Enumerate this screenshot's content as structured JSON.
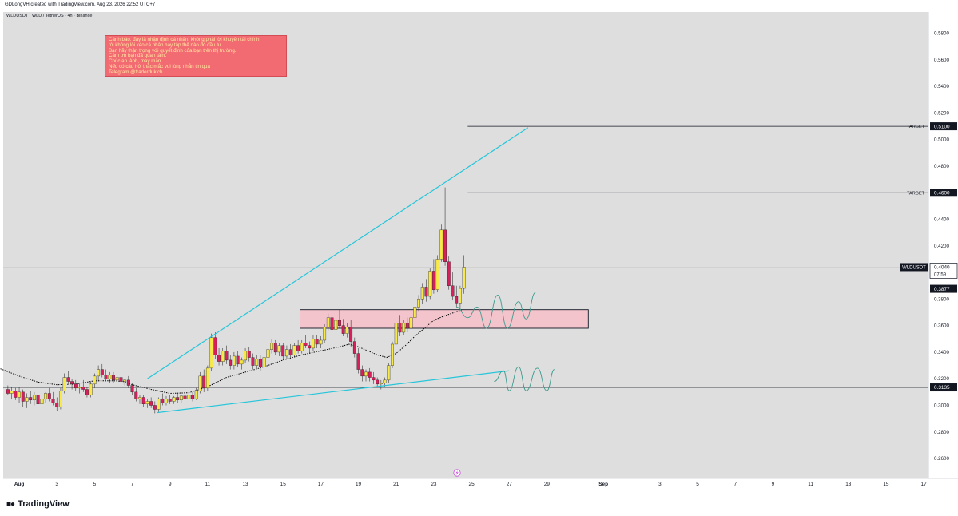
{
  "header": {
    "attribution": "GDLongVH created with TradingView.com, Aug 23, 2026 22:52 UTC+7",
    "symbol_title": "WLDUSDT · WLD / TetherUS · 4h · Binance"
  },
  "note": {
    "lines": [
      "Cảnh báo: đây là nhận định cá nhân, không phải lời khuyên tài chính,",
      "tôi không lôi kéo cá nhân hay tập thể nào đó đầu tư.",
      "Bạn hãy thận trọng với quyết định của bạn trên thị trường.",
      "Cảm ơn bạn đã quan tâm.",
      "Chúc an lành, may mắn.",
      "Nếu có câu hỏi thắc mắc vui lòng nhắn tin qua",
      "Telegram @traderdukich"
    ]
  },
  "footer": {
    "brand": "TradingView"
  },
  "colors": {
    "up": "#f7e94a",
    "down": "#d81e5b",
    "trendline": "#26c6da",
    "ma": "#000000",
    "zone": "#f3c4cc",
    "note_bg": "#f26b72"
  },
  "chart_data": {
    "type": "candlestick",
    "symbol": "WLDUSDT",
    "timeframe": "4h",
    "x_ticks": [
      "Aug",
      "3",
      "5",
      "7",
      "9",
      "11",
      "13",
      "15",
      "17",
      "19",
      "21",
      "23",
      "25",
      "27",
      "29",
      "Sep",
      "3",
      "5",
      "7",
      "9",
      "11",
      "13",
      "15",
      "17"
    ],
    "y_ticks": [
      "0.2600",
      "0.2800",
      "0.3000",
      "0.3200",
      "0.3400",
      "0.3600",
      "0.3800",
      "0.4000",
      "0.4200",
      "0.4400",
      "0.4600",
      "0.4800",
      "0.5000",
      "0.5200",
      "0.5400",
      "0.5600",
      "0.5800"
    ],
    "ylim": [
      0.245,
      0.596
    ],
    "x_range_days": [
      -0.85,
      48.25
    ],
    "price_labels": [
      {
        "price": 0.51,
        "text": "0.5100",
        "label": "TARGET"
      },
      {
        "price": 0.46,
        "text": "0.4600",
        "label": "TARGET"
      },
      {
        "price": 0.404,
        "text": "0.4040",
        "symbol": "WLDUSDT",
        "countdown": "07:59"
      },
      {
        "price": 0.3877,
        "text": "0.3877"
      },
      {
        "price": 0.3135,
        "text": "0.3135"
      }
    ],
    "levels": [
      {
        "price": 0.51,
        "from_day": 23.8,
        "to_day": 48.25,
        "label": "TARGET"
      },
      {
        "price": 0.46,
        "from_day": 23.8,
        "to_day": 48.25,
        "label": "TARGET"
      },
      {
        "price": 0.3135,
        "from_day": -0.85,
        "to_day": 48.25
      }
    ],
    "zone": {
      "from_day": 14.9,
      "to_day": 30.2,
      "low": 0.358,
      "high": 0.372
    },
    "trendlines": [
      {
        "from": [
          6.8,
          0.32
        ],
        "to": [
          27.0,
          0.509
        ]
      },
      {
        "from": [
          7.3,
          0.2945
        ],
        "to": [
          26.0,
          0.326
        ]
      }
    ],
    "projections": [
      [
        [
          23.2,
          0.374
        ],
        [
          23.8,
          0.366
        ],
        [
          24.3,
          0.374
        ],
        [
          24.8,
          0.358
        ],
        [
          25.4,
          0.383
        ],
        [
          25.9,
          0.358
        ],
        [
          26.5,
          0.378
        ],
        [
          26.9,
          0.365
        ],
        [
          27.4,
          0.385
        ]
      ],
      [
        [
          25.2,
          0.318
        ],
        [
          25.7,
          0.326
        ],
        [
          26.0,
          0.311
        ],
        [
          26.5,
          0.329
        ],
        [
          26.9,
          0.311
        ],
        [
          27.5,
          0.328
        ],
        [
          28.0,
          0.311
        ],
        [
          28.4,
          0.327
        ]
      ]
    ],
    "ma_points": [
      [
        -1.0,
        0.3275
      ],
      [
        0.0,
        0.322
      ],
      [
        1.0,
        0.3175
      ],
      [
        2.0,
        0.3155
      ],
      [
        3.0,
        0.316
      ],
      [
        4.0,
        0.3185
      ],
      [
        5.0,
        0.3185
      ],
      [
        5.5,
        0.318
      ],
      [
        6.0,
        0.3155
      ],
      [
        7.0,
        0.312
      ],
      [
        8.0,
        0.309
      ],
      [
        9.0,
        0.3095
      ],
      [
        10.0,
        0.314
      ],
      [
        11.0,
        0.321
      ],
      [
        12.0,
        0.325
      ],
      [
        13.0,
        0.329
      ],
      [
        14.0,
        0.334
      ],
      [
        15.0,
        0.338
      ],
      [
        16.0,
        0.341
      ],
      [
        17.0,
        0.344
      ],
      [
        17.5,
        0.346
      ],
      [
        18.0,
        0.344
      ],
      [
        18.5,
        0.341
      ],
      [
        19.0,
        0.338
      ],
      [
        19.5,
        0.336
      ],
      [
        20.0,
        0.339
      ],
      [
        20.5,
        0.345
      ],
      [
        21.0,
        0.352
      ],
      [
        21.5,
        0.358
      ],
      [
        22.0,
        0.364
      ],
      [
        22.5,
        0.367
      ],
      [
        23.0,
        0.3695
      ],
      [
        23.5,
        0.372
      ]
    ],
    "candles": [
      {
        "day": -0.6,
        "o": 0.312,
        "h": 0.315,
        "l": 0.308,
        "c": 0.309
      },
      {
        "day": -0.4,
        "o": 0.309,
        "h": 0.314,
        "l": 0.305,
        "c": 0.311
      },
      {
        "day": -0.2,
        "o": 0.311,
        "h": 0.313,
        "l": 0.304,
        "c": 0.306
      },
      {
        "day": 0.0,
        "o": 0.306,
        "h": 0.314,
        "l": 0.302,
        "c": 0.31
      },
      {
        "day": 0.2,
        "o": 0.31,
        "h": 0.312,
        "l": 0.299,
        "c": 0.303
      },
      {
        "day": 0.4,
        "o": 0.303,
        "h": 0.309,
        "l": 0.298,
        "c": 0.306
      },
      {
        "day": 0.6,
        "o": 0.306,
        "h": 0.311,
        "l": 0.301,
        "c": 0.304
      },
      {
        "day": 0.8,
        "o": 0.304,
        "h": 0.31,
        "l": 0.3,
        "c": 0.308
      },
      {
        "day": 1.0,
        "o": 0.308,
        "h": 0.311,
        "l": 0.299,
        "c": 0.301
      },
      {
        "day": 1.2,
        "o": 0.301,
        "h": 0.307,
        "l": 0.298,
        "c": 0.305
      },
      {
        "day": 1.4,
        "o": 0.305,
        "h": 0.31,
        "l": 0.302,
        "c": 0.309
      },
      {
        "day": 1.6,
        "o": 0.309,
        "h": 0.313,
        "l": 0.303,
        "c": 0.305
      },
      {
        "day": 1.8,
        "o": 0.305,
        "h": 0.31,
        "l": 0.3,
        "c": 0.302
      },
      {
        "day": 2.0,
        "o": 0.302,
        "h": 0.306,
        "l": 0.296,
        "c": 0.299
      },
      {
        "day": 2.2,
        "o": 0.299,
        "h": 0.313,
        "l": 0.297,
        "c": 0.311
      },
      {
        "day": 2.4,
        "o": 0.311,
        "h": 0.324,
        "l": 0.309,
        "c": 0.321
      },
      {
        "day": 2.6,
        "o": 0.321,
        "h": 0.326,
        "l": 0.316,
        "c": 0.318
      },
      {
        "day": 2.8,
        "o": 0.318,
        "h": 0.32,
        "l": 0.312,
        "c": 0.316
      },
      {
        "day": 3.0,
        "o": 0.316,
        "h": 0.319,
        "l": 0.311,
        "c": 0.313
      },
      {
        "day": 3.2,
        "o": 0.313,
        "h": 0.316,
        "l": 0.309,
        "c": 0.314
      },
      {
        "day": 3.4,
        "o": 0.314,
        "h": 0.319,
        "l": 0.31,
        "c": 0.312
      },
      {
        "day": 3.6,
        "o": 0.312,
        "h": 0.314,
        "l": 0.306,
        "c": 0.308
      },
      {
        "day": 3.8,
        "o": 0.308,
        "h": 0.318,
        "l": 0.306,
        "c": 0.316
      },
      {
        "day": 4.0,
        "o": 0.316,
        "h": 0.324,
        "l": 0.313,
        "c": 0.322
      },
      {
        "day": 4.2,
        "o": 0.322,
        "h": 0.33,
        "l": 0.318,
        "c": 0.327
      },
      {
        "day": 4.4,
        "o": 0.327,
        "h": 0.331,
        "l": 0.321,
        "c": 0.323
      },
      {
        "day": 4.6,
        "o": 0.323,
        "h": 0.327,
        "l": 0.318,
        "c": 0.32
      },
      {
        "day": 4.8,
        "o": 0.32,
        "h": 0.325,
        "l": 0.317,
        "c": 0.323
      },
      {
        "day": 5.0,
        "o": 0.323,
        "h": 0.325,
        "l": 0.317,
        "c": 0.319
      },
      {
        "day": 5.2,
        "o": 0.319,
        "h": 0.322,
        "l": 0.316,
        "c": 0.321
      },
      {
        "day": 5.4,
        "o": 0.321,
        "h": 0.323,
        "l": 0.317,
        "c": 0.318
      },
      {
        "day": 5.6,
        "o": 0.318,
        "h": 0.32,
        "l": 0.315,
        "c": 0.319
      },
      {
        "day": 5.8,
        "o": 0.319,
        "h": 0.322,
        "l": 0.313,
        "c": 0.315
      },
      {
        "day": 6.0,
        "o": 0.315,
        "h": 0.317,
        "l": 0.308,
        "c": 0.31
      },
      {
        "day": 6.2,
        "o": 0.31,
        "h": 0.313,
        "l": 0.303,
        "c": 0.305
      },
      {
        "day": 6.4,
        "o": 0.305,
        "h": 0.308,
        "l": 0.301,
        "c": 0.306
      },
      {
        "day": 6.6,
        "o": 0.306,
        "h": 0.308,
        "l": 0.299,
        "c": 0.301
      },
      {
        "day": 6.8,
        "o": 0.301,
        "h": 0.305,
        "l": 0.298,
        "c": 0.303
      },
      {
        "day": 7.0,
        "o": 0.303,
        "h": 0.306,
        "l": 0.298,
        "c": 0.3
      },
      {
        "day": 7.2,
        "o": 0.3,
        "h": 0.303,
        "l": 0.294,
        "c": 0.297
      },
      {
        "day": 7.4,
        "o": 0.297,
        "h": 0.306,
        "l": 0.295,
        "c": 0.305
      },
      {
        "day": 7.6,
        "o": 0.305,
        "h": 0.309,
        "l": 0.3,
        "c": 0.302
      },
      {
        "day": 7.8,
        "o": 0.302,
        "h": 0.307,
        "l": 0.3,
        "c": 0.305
      },
      {
        "day": 8.0,
        "o": 0.305,
        "h": 0.308,
        "l": 0.301,
        "c": 0.303
      },
      {
        "day": 8.2,
        "o": 0.303,
        "h": 0.307,
        "l": 0.301,
        "c": 0.306
      },
      {
        "day": 8.4,
        "o": 0.306,
        "h": 0.309,
        "l": 0.302,
        "c": 0.304
      },
      {
        "day": 8.6,
        "o": 0.304,
        "h": 0.308,
        "l": 0.302,
        "c": 0.307
      },
      {
        "day": 8.8,
        "o": 0.307,
        "h": 0.309,
        "l": 0.303,
        "c": 0.305
      },
      {
        "day": 9.0,
        "o": 0.305,
        "h": 0.31,
        "l": 0.303,
        "c": 0.308
      },
      {
        "day": 9.2,
        "o": 0.308,
        "h": 0.31,
        "l": 0.303,
        "c": 0.305
      },
      {
        "day": 9.4,
        "o": 0.305,
        "h": 0.313,
        "l": 0.304,
        "c": 0.311
      },
      {
        "day": 9.6,
        "o": 0.311,
        "h": 0.325,
        "l": 0.309,
        "c": 0.322
      },
      {
        "day": 9.8,
        "o": 0.322,
        "h": 0.327,
        "l": 0.31,
        "c": 0.313
      },
      {
        "day": 10.0,
        "o": 0.313,
        "h": 0.33,
        "l": 0.311,
        "c": 0.328
      },
      {
        "day": 10.2,
        "o": 0.328,
        "h": 0.354,
        "l": 0.326,
        "c": 0.351
      },
      {
        "day": 10.4,
        "o": 0.351,
        "h": 0.355,
        "l": 0.335,
        "c": 0.338
      },
      {
        "day": 10.6,
        "o": 0.338,
        "h": 0.343,
        "l": 0.33,
        "c": 0.333
      },
      {
        "day": 10.8,
        "o": 0.333,
        "h": 0.343,
        "l": 0.33,
        "c": 0.341
      },
      {
        "day": 11.0,
        "o": 0.341,
        "h": 0.345,
        "l": 0.331,
        "c": 0.334
      },
      {
        "day": 11.2,
        "o": 0.334,
        "h": 0.338,
        "l": 0.327,
        "c": 0.33
      },
      {
        "day": 11.4,
        "o": 0.33,
        "h": 0.34,
        "l": 0.327,
        "c": 0.337
      },
      {
        "day": 11.6,
        "o": 0.337,
        "h": 0.341,
        "l": 0.329,
        "c": 0.331
      },
      {
        "day": 11.8,
        "o": 0.331,
        "h": 0.336,
        "l": 0.327,
        "c": 0.334
      },
      {
        "day": 12.0,
        "o": 0.334,
        "h": 0.343,
        "l": 0.332,
        "c": 0.341
      },
      {
        "day": 12.2,
        "o": 0.341,
        "h": 0.344,
        "l": 0.333,
        "c": 0.336
      },
      {
        "day": 12.4,
        "o": 0.336,
        "h": 0.339,
        "l": 0.327,
        "c": 0.33
      },
      {
        "day": 12.6,
        "o": 0.33,
        "h": 0.338,
        "l": 0.327,
        "c": 0.335
      },
      {
        "day": 12.8,
        "o": 0.335,
        "h": 0.338,
        "l": 0.326,
        "c": 0.329
      },
      {
        "day": 13.0,
        "o": 0.329,
        "h": 0.338,
        "l": 0.327,
        "c": 0.336
      },
      {
        "day": 13.2,
        "o": 0.336,
        "h": 0.344,
        "l": 0.333,
        "c": 0.342
      },
      {
        "day": 13.4,
        "o": 0.342,
        "h": 0.35,
        "l": 0.339,
        "c": 0.347
      },
      {
        "day": 13.6,
        "o": 0.347,
        "h": 0.349,
        "l": 0.338,
        "c": 0.34
      },
      {
        "day": 13.8,
        "o": 0.34,
        "h": 0.347,
        "l": 0.337,
        "c": 0.345
      },
      {
        "day": 14.0,
        "o": 0.345,
        "h": 0.347,
        "l": 0.334,
        "c": 0.337
      },
      {
        "day": 14.2,
        "o": 0.337,
        "h": 0.345,
        "l": 0.335,
        "c": 0.342
      },
      {
        "day": 14.4,
        "o": 0.342,
        "h": 0.346,
        "l": 0.336,
        "c": 0.338
      },
      {
        "day": 14.6,
        "o": 0.338,
        "h": 0.347,
        "l": 0.336,
        "c": 0.345
      },
      {
        "day": 14.8,
        "o": 0.345,
        "h": 0.349,
        "l": 0.339,
        "c": 0.341
      },
      {
        "day": 15.0,
        "o": 0.341,
        "h": 0.349,
        "l": 0.339,
        "c": 0.347
      },
      {
        "day": 15.2,
        "o": 0.347,
        "h": 0.353,
        "l": 0.343,
        "c": 0.345
      },
      {
        "day": 15.4,
        "o": 0.345,
        "h": 0.348,
        "l": 0.339,
        "c": 0.343
      },
      {
        "day": 15.6,
        "o": 0.343,
        "h": 0.353,
        "l": 0.341,
        "c": 0.35
      },
      {
        "day": 15.8,
        "o": 0.35,
        "h": 0.353,
        "l": 0.343,
        "c": 0.346
      },
      {
        "day": 16.0,
        "o": 0.346,
        "h": 0.352,
        "l": 0.343,
        "c": 0.349
      },
      {
        "day": 16.2,
        "o": 0.349,
        "h": 0.361,
        "l": 0.347,
        "c": 0.359
      },
      {
        "day": 16.4,
        "o": 0.359,
        "h": 0.369,
        "l": 0.356,
        "c": 0.366
      },
      {
        "day": 16.6,
        "o": 0.366,
        "h": 0.37,
        "l": 0.354,
        "c": 0.357
      },
      {
        "day": 16.8,
        "o": 0.357,
        "h": 0.366,
        "l": 0.355,
        "c": 0.364
      },
      {
        "day": 17.0,
        "o": 0.364,
        "h": 0.372,
        "l": 0.358,
        "c": 0.36
      },
      {
        "day": 17.2,
        "o": 0.36,
        "h": 0.365,
        "l": 0.352,
        "c": 0.354
      },
      {
        "day": 17.4,
        "o": 0.354,
        "h": 0.362,
        "l": 0.351,
        "c": 0.359
      },
      {
        "day": 17.6,
        "o": 0.359,
        "h": 0.364,
        "l": 0.344,
        "c": 0.348
      },
      {
        "day": 17.8,
        "o": 0.348,
        "h": 0.351,
        "l": 0.336,
        "c": 0.339
      },
      {
        "day": 18.0,
        "o": 0.339,
        "h": 0.343,
        "l": 0.324,
        "c": 0.327
      },
      {
        "day": 18.2,
        "o": 0.327,
        "h": 0.33,
        "l": 0.318,
        "c": 0.322
      },
      {
        "day": 18.4,
        "o": 0.322,
        "h": 0.327,
        "l": 0.318,
        "c": 0.325
      },
      {
        "day": 18.6,
        "o": 0.325,
        "h": 0.328,
        "l": 0.318,
        "c": 0.321
      },
      {
        "day": 18.8,
        "o": 0.321,
        "h": 0.325,
        "l": 0.316,
        "c": 0.319
      },
      {
        "day": 19.0,
        "o": 0.319,
        "h": 0.321,
        "l": 0.314,
        "c": 0.316
      },
      {
        "day": 19.2,
        "o": 0.316,
        "h": 0.319,
        "l": 0.312,
        "c": 0.317
      },
      {
        "day": 19.4,
        "o": 0.317,
        "h": 0.321,
        "l": 0.314,
        "c": 0.319
      },
      {
        "day": 19.6,
        "o": 0.319,
        "h": 0.332,
        "l": 0.317,
        "c": 0.33
      },
      {
        "day": 19.8,
        "o": 0.33,
        "h": 0.348,
        "l": 0.328,
        "c": 0.346
      },
      {
        "day": 20.0,
        "o": 0.346,
        "h": 0.366,
        "l": 0.344,
        "c": 0.362
      },
      {
        "day": 20.2,
        "o": 0.362,
        "h": 0.368,
        "l": 0.352,
        "c": 0.355
      },
      {
        "day": 20.4,
        "o": 0.355,
        "h": 0.364,
        "l": 0.353,
        "c": 0.362
      },
      {
        "day": 20.6,
        "o": 0.362,
        "h": 0.366,
        "l": 0.355,
        "c": 0.358
      },
      {
        "day": 20.8,
        "o": 0.358,
        "h": 0.368,
        "l": 0.356,
        "c": 0.366
      },
      {
        "day": 21.0,
        "o": 0.366,
        "h": 0.377,
        "l": 0.364,
        "c": 0.374
      },
      {
        "day": 21.2,
        "o": 0.374,
        "h": 0.383,
        "l": 0.371,
        "c": 0.38
      },
      {
        "day": 21.4,
        "o": 0.38,
        "h": 0.392,
        "l": 0.376,
        "c": 0.389
      },
      {
        "day": 21.6,
        "o": 0.389,
        "h": 0.395,
        "l": 0.378,
        "c": 0.382
      },
      {
        "day": 21.8,
        "o": 0.382,
        "h": 0.403,
        "l": 0.38,
        "c": 0.401
      },
      {
        "day": 22.0,
        "o": 0.401,
        "h": 0.41,
        "l": 0.384,
        "c": 0.387
      },
      {
        "day": 22.2,
        "o": 0.387,
        "h": 0.413,
        "l": 0.385,
        "c": 0.41
      },
      {
        "day": 22.4,
        "o": 0.41,
        "h": 0.436,
        "l": 0.408,
        "c": 0.432
      },
      {
        "day": 22.6,
        "o": 0.432,
        "h": 0.464,
        "l": 0.405,
        "c": 0.408
      },
      {
        "day": 22.8,
        "o": 0.408,
        "h": 0.412,
        "l": 0.387,
        "c": 0.39
      },
      {
        "day": 23.0,
        "o": 0.39,
        "h": 0.4,
        "l": 0.379,
        "c": 0.382
      },
      {
        "day": 23.2,
        "o": 0.382,
        "h": 0.39,
        "l": 0.374,
        "c": 0.377
      },
      {
        "day": 23.4,
        "o": 0.377,
        "h": 0.39,
        "l": 0.372,
        "c": 0.388
      },
      {
        "day": 23.6,
        "o": 0.388,
        "h": 0.413,
        "l": 0.384,
        "c": 0.404
      }
    ]
  }
}
